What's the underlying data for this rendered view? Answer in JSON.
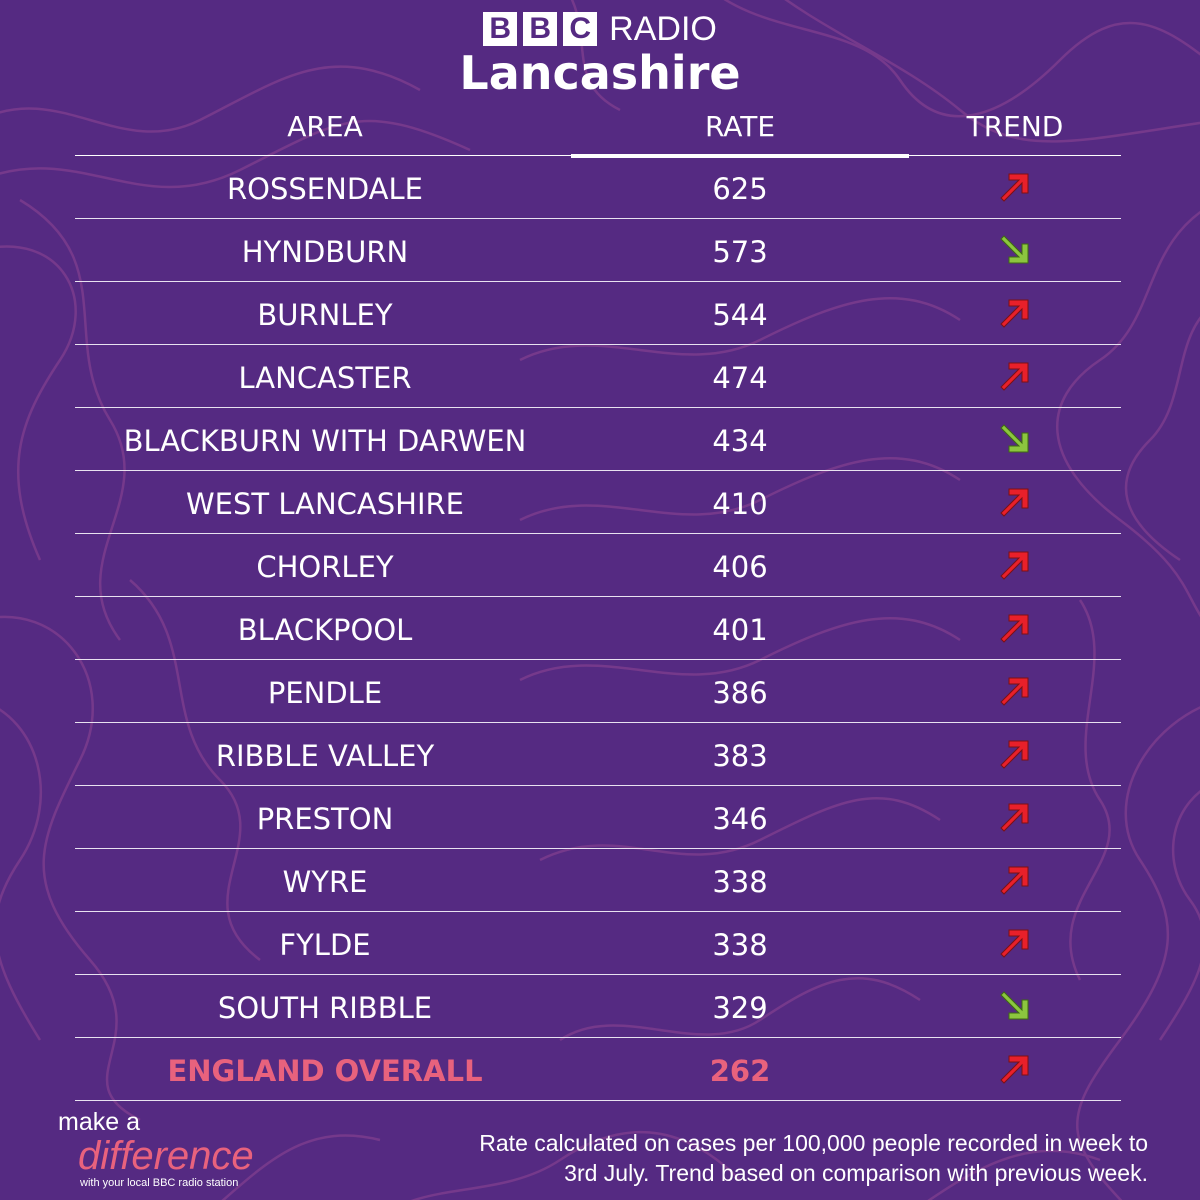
{
  "logo": {
    "bbc_letters": [
      "B",
      "B",
      "C"
    ],
    "radio": "RADIO",
    "station": "Lancashire"
  },
  "table": {
    "headers": {
      "area": "AREA",
      "rate": "RATE",
      "trend": "TREND"
    },
    "rows": [
      {
        "area": "ROSSENDALE",
        "rate": "625",
        "trend": "up"
      },
      {
        "area": "HYNDBURN",
        "rate": "573",
        "trend": "down"
      },
      {
        "area": "BURNLEY",
        "rate": "544",
        "trend": "up"
      },
      {
        "area": "LANCASTER",
        "rate": "474",
        "trend": "up"
      },
      {
        "area": "BLACKBURN WITH DARWEN",
        "rate": "434",
        "trend": "down"
      },
      {
        "area": "WEST LANCASHIRE",
        "rate": "410",
        "trend": "up"
      },
      {
        "area": "CHORLEY",
        "rate": "406",
        "trend": "up"
      },
      {
        "area": "BLACKPOOL",
        "rate": "401",
        "trend": "up"
      },
      {
        "area": "PENDLE",
        "rate": "386",
        "trend": "up"
      },
      {
        "area": "RIBBLE VALLEY",
        "rate": "383",
        "trend": "up"
      },
      {
        "area": "PRESTON",
        "rate": "346",
        "trend": "up"
      },
      {
        "area": "WYRE",
        "rate": "338",
        "trend": "up"
      },
      {
        "area": "FYLDE",
        "rate": "338",
        "trend": "up"
      },
      {
        "area": "SOUTH RIBBLE",
        "rate": "329",
        "trend": "down"
      },
      {
        "area": "ENGLAND OVERALL",
        "rate": "262",
        "trend": "up",
        "highlight": true
      }
    ]
  },
  "branding": {
    "line1": "make a",
    "line2": "difference",
    "line3": "with your local BBC radio station"
  },
  "footnote": {
    "line1": "Rate calculated on cases per 100,000 people recorded in week to",
    "line2": "3rd July. Trend based on comparison with previous week."
  },
  "colors": {
    "background": "#552a82",
    "contour": "#7a3b8c",
    "highlight": "#e8627d",
    "up": "#e8202a",
    "down": "#8cc63f"
  },
  "icons": {
    "up": "arrow-up-right-icon",
    "down": "arrow-down-right-icon"
  }
}
